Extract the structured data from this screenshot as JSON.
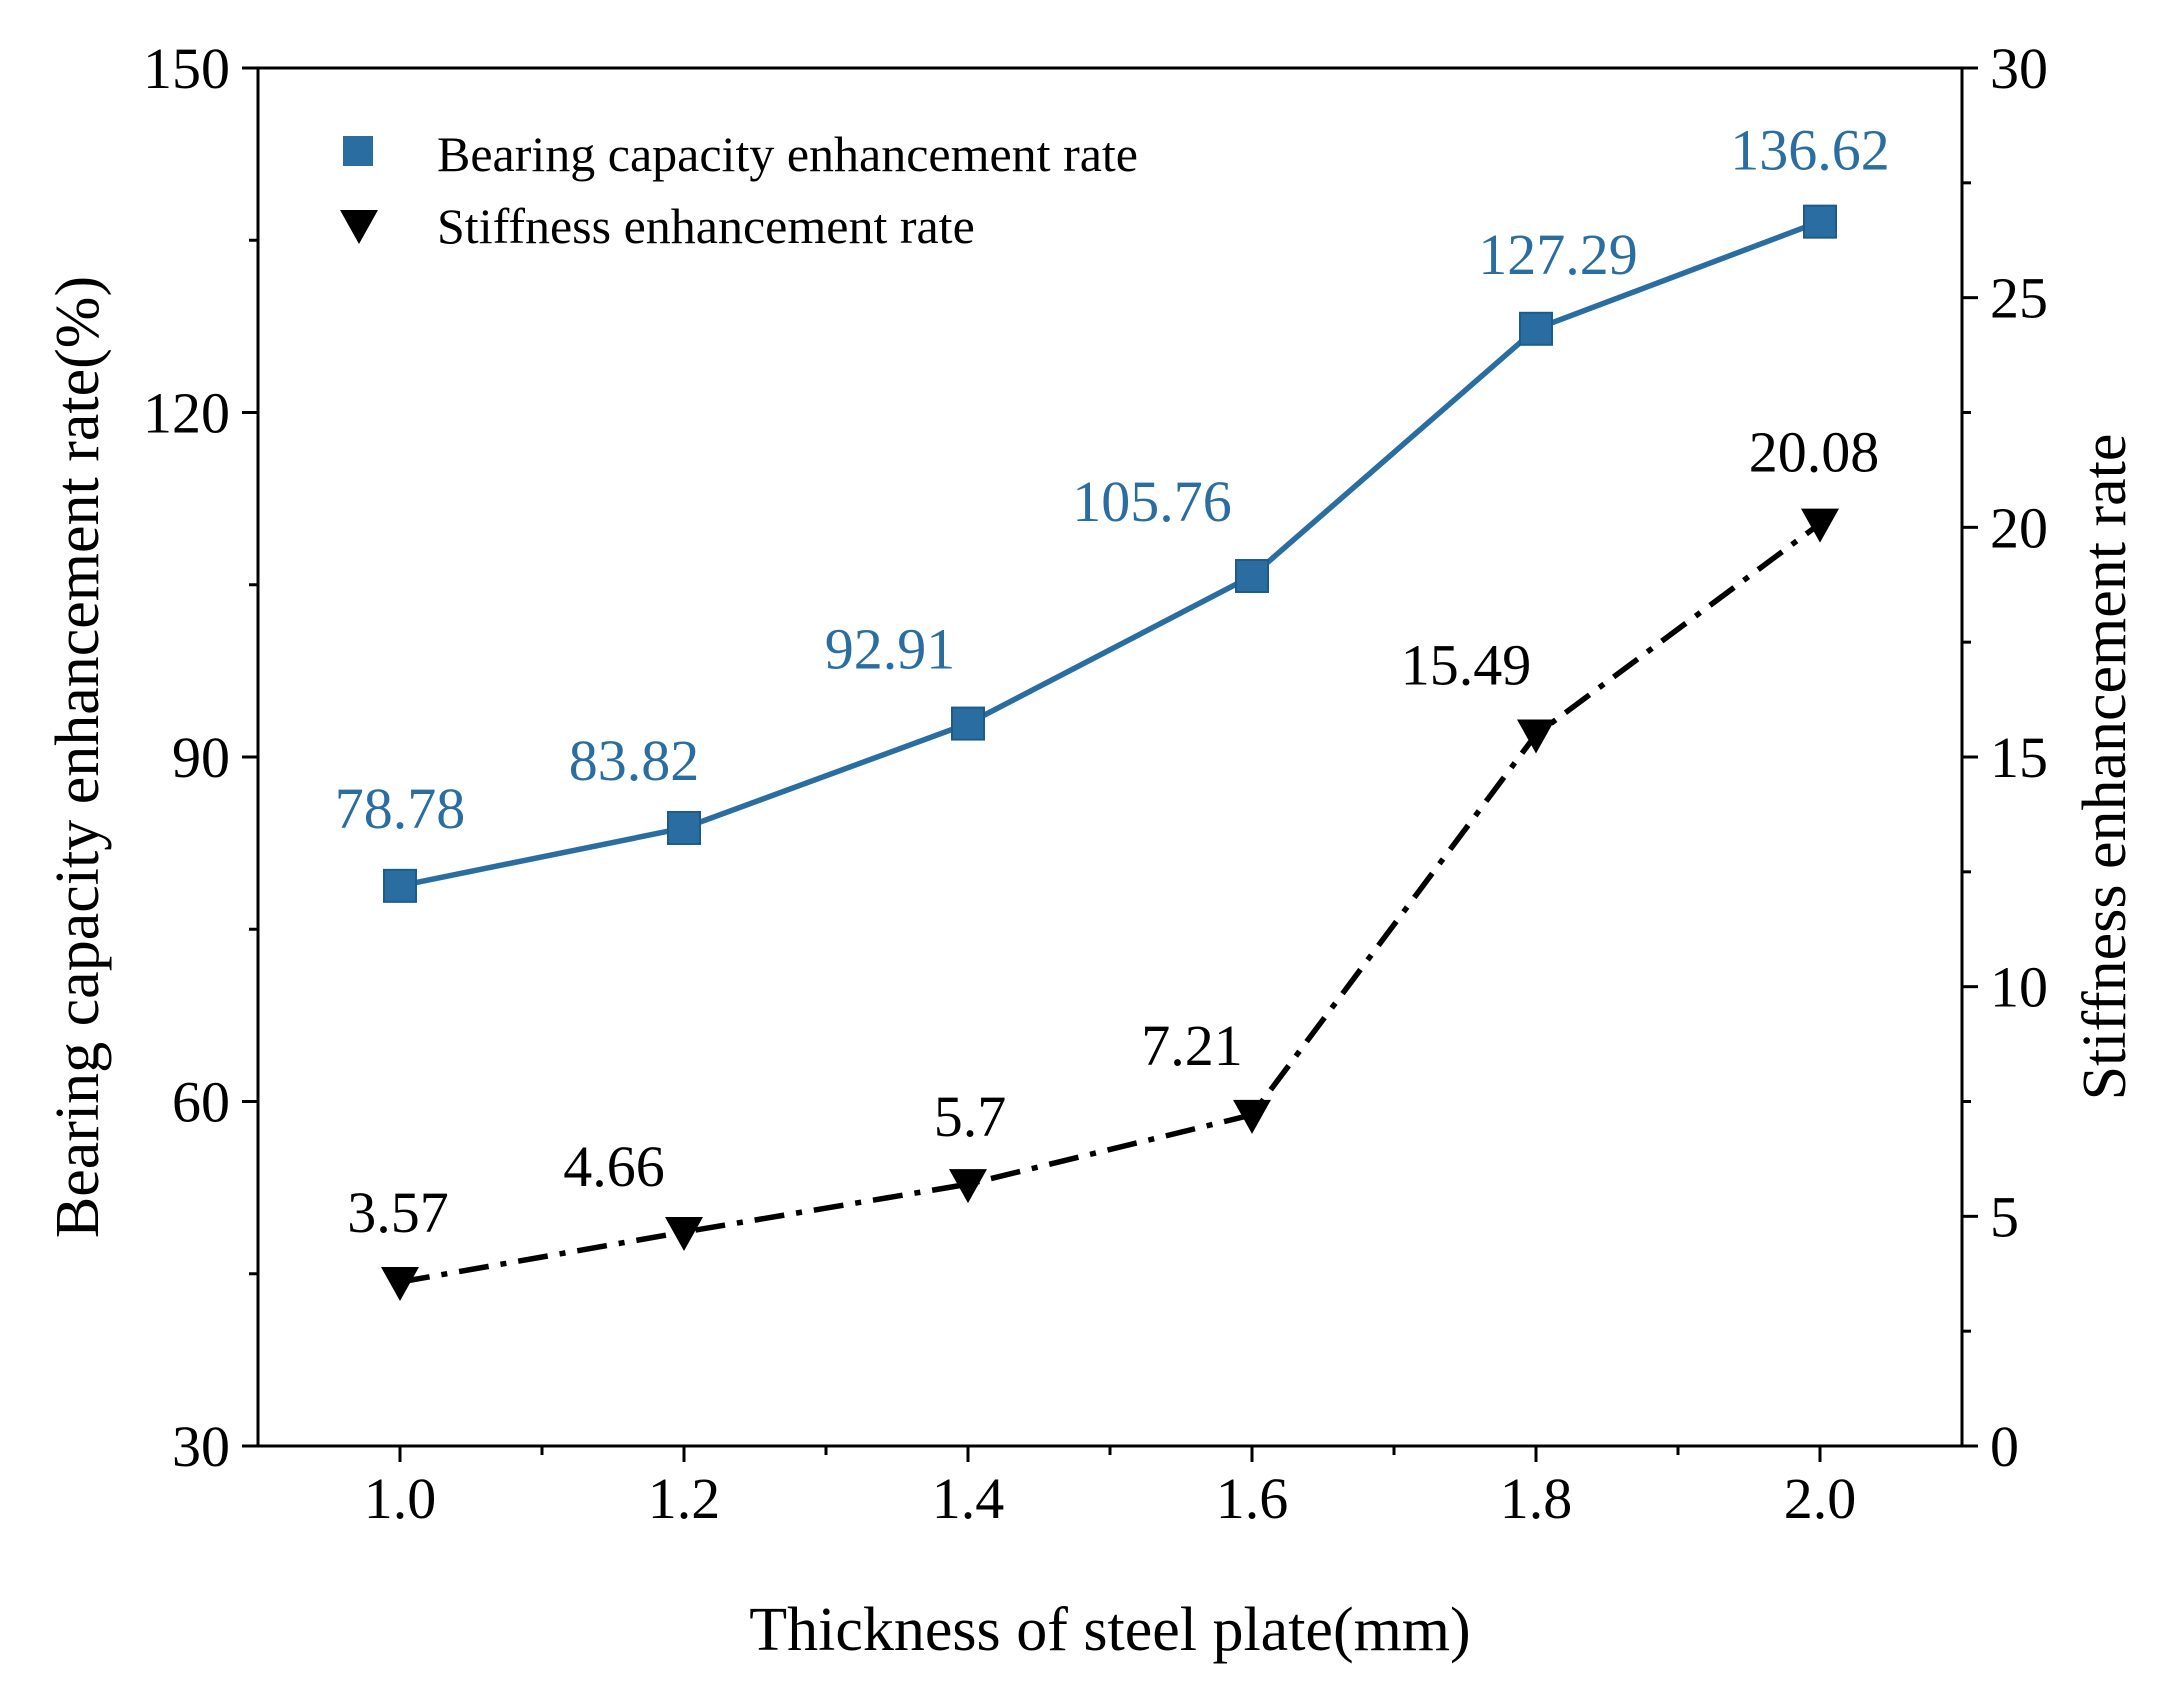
{
  "chart_data": {
    "type": "line",
    "x": [
      "1.0",
      "1.2",
      "1.4",
      "1.6",
      "1.8",
      "2.0"
    ],
    "xvalues": [
      1.0,
      1.2,
      1.4,
      1.6,
      1.8,
      2.0
    ],
    "xlim": [
      0.9,
      2.1
    ],
    "xlabel": "Thickness of steel plate(mm)",
    "y_left": {
      "label": "Bearing capacity enhancement rate(%)",
      "lim": [
        30,
        150
      ],
      "ticks": [
        "30",
        "60",
        "90",
        "120",
        "150"
      ],
      "tickvalues": [
        30,
        60,
        90,
        120,
        150
      ]
    },
    "y_right": {
      "label": "Stiffness enhancement rate",
      "lim": [
        0,
        30
      ],
      "ticks": [
        "0",
        "5",
        "10",
        "15",
        "20",
        "25",
        "30"
      ],
      "tickvalues": [
        0,
        5,
        10,
        15,
        20,
        25,
        30
      ]
    },
    "series": [
      {
        "name": "Bearing capacity enhancement rate",
        "axis": "left",
        "marker": "square",
        "line": "solid",
        "color": "#2a6ea1",
        "values": [
          78.78,
          83.82,
          92.91,
          105.76,
          127.29,
          136.62
        ],
        "labels": [
          "78.78",
          "83.82",
          "92.91",
          "105.76",
          "127.29",
          "136.62"
        ]
      },
      {
        "name": "Stiffness enhancement rate",
        "axis": "right",
        "marker": "triangle-down",
        "line": "dash-dot",
        "color": "#000000",
        "values": [
          3.57,
          4.66,
          5.7,
          7.21,
          15.49,
          20.08
        ],
        "labels": [
          "3.57",
          "4.66",
          "5.7",
          "7.21",
          "15.49",
          "20.08"
        ]
      }
    ],
    "legend": "top-left",
    "grid": false
  }
}
